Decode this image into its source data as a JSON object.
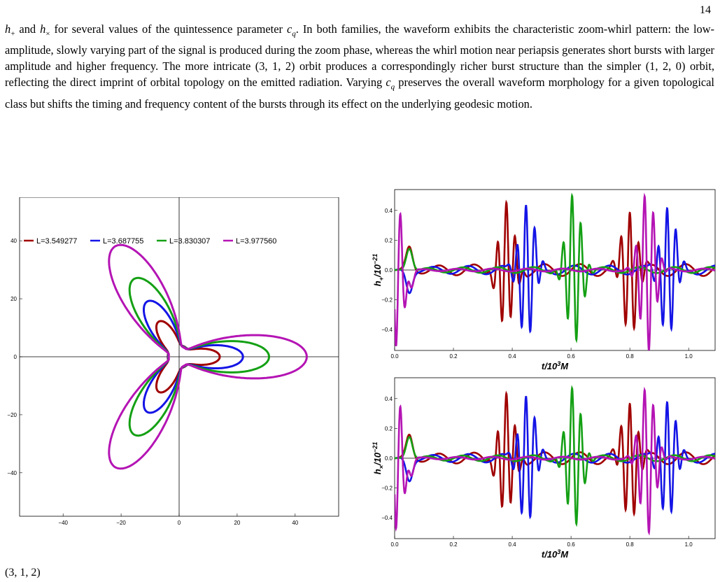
{
  "page": {
    "number": "14"
  },
  "paragraph": {
    "segments": [
      {
        "t": "h",
        "i": true
      },
      {
        "t": "+",
        "sub": true
      },
      {
        "t": " and "
      },
      {
        "t": "h",
        "i": true
      },
      {
        "t": "×",
        "sub": true
      },
      {
        "t": " for several values of the quintessence parameter "
      },
      {
        "t": "c",
        "i": true
      },
      {
        "t": "q",
        "sub": true,
        "i": true
      },
      {
        "t": ". In both families, the waveform exhibits the characteristic zoom-whirl pattern: the low-amplitude, slowly varying part of the signal is produced during the zoom phase, whereas the whirl motion near periapsis generates short bursts with larger amplitude and higher frequency. The more intricate (3, 1, 2) orbit produces a correspondingly richer burst structure than the simpler (1, 2, 0) orbit, reflecting the direct imprint of orbital topology on the emitted radiation. Varying "
      },
      {
        "t": "c",
        "i": true
      },
      {
        "t": "q",
        "sub": true,
        "i": true
      },
      {
        "t": " preserves the overall waveform morphology for a given topological class but shifts the timing and frequency content of the bursts through its effect on the underlying geodesic motion."
      }
    ]
  },
  "bottom_caption": "(3, 1, 2)",
  "colors": {
    "red": "#a00000",
    "blue": "#1414e6",
    "green": "#14a014",
    "magenta": "#b414b4"
  },
  "chart_data": [
    {
      "type": "line",
      "panel": "orbit",
      "xlim": [
        -55,
        55
      ],
      "ylim": [
        -55,
        55
      ],
      "xticks": [
        -40,
        -20,
        0,
        20,
        40
      ],
      "yticks": [
        -40,
        -20,
        0,
        20,
        40
      ],
      "series": [
        {
          "name": "L=3.549277",
          "color": "#a00000",
          "apo": 14,
          "peri": 3.9
        },
        {
          "name": "L=3.687755",
          "color": "#1414e6",
          "apo": 22,
          "peri": 3.8
        },
        {
          "name": "L=3.830307",
          "color": "#14a014",
          "apo": 31,
          "peri": 3.7
        },
        {
          "name": "L=3.977560",
          "color": "#b414b4",
          "apo": 44,
          "peri": 3.6
        }
      ],
      "legend": "top"
    },
    {
      "type": "line",
      "panel": "h-plus",
      "ylabel_main": "h",
      "ylabel_sub": "+",
      "ylabel_tail": "/10",
      "ylabel_sup": "−21",
      "xlabel_main": "t/10",
      "xlabel_sup": "3",
      "xlabel_tail": "M",
      "xlim": [
        0,
        1.09
      ],
      "ylim": [
        -0.54,
        0.54
      ],
      "xticks": [
        "0.0",
        "0.2",
        "0.4",
        "0.6",
        "0.8",
        "1.0"
      ],
      "yticks": [
        "0.4",
        "0.2",
        "0.0",
        "−0.2",
        "−0.4"
      ],
      "ytick_values": [
        0.4,
        0.2,
        0.0,
        -0.2,
        -0.4
      ],
      "series": [
        {
          "name": "L=3.549277",
          "color": "#a00000",
          "bursts": [
            [
              0.38,
              0.42,
              0.35
            ],
            [
              0.8,
              0.42,
              0.35
            ]
          ],
          "zoom": 0.04
        },
        {
          "name": "L=3.687755",
          "color": "#1414e6",
          "bursts": [
            [
              0.45,
              0.46,
              0.3
            ],
            [
              0.93,
              0.44,
              0.3
            ]
          ],
          "zoom": 0.03
        },
        {
          "name": "L=3.830307",
          "color": "#14a014",
          "bursts": [
            [
              0.61,
              0.5,
              0.25
            ]
          ],
          "zoom": 0.02
        },
        {
          "name": "L=3.977560",
          "color": "#b414b4",
          "bursts": [
            [
              0.0,
              0.52,
              0.2
            ],
            [
              0.86,
              0.54,
              0.2
            ]
          ],
          "zoom": 0.01
        }
      ]
    },
    {
      "type": "line",
      "panel": "h-cross",
      "ylabel_main": "h",
      "ylabel_sub": "×",
      "ylabel_tail": "/10",
      "ylabel_sup": "−21",
      "xlabel_main": "t/10",
      "xlabel_sup": "3",
      "xlabel_tail": "M",
      "xlim": [
        0,
        1.09
      ],
      "ylim": [
        -0.54,
        0.54
      ],
      "xticks": [
        "0.0",
        "0.2",
        "0.4",
        "0.6",
        "0.8",
        "1.0"
      ],
      "yticks": [
        "0.4",
        "0.2",
        "0.0",
        "−0.2",
        "−0.4"
      ],
      "ytick_values": [
        0.4,
        0.2,
        0.0,
        -0.2,
        -0.4
      ],
      "series": [
        {
          "name": "L=3.549277",
          "color": "#a00000",
          "bursts": [
            [
              0.38,
              0.4,
              0.35
            ],
            [
              0.8,
              0.4,
              0.35
            ]
          ],
          "zoom": 0.04
        },
        {
          "name": "L=3.687755",
          "color": "#1414e6",
          "bursts": [
            [
              0.45,
              0.44,
              0.3
            ],
            [
              0.93,
              0.4,
              0.3
            ]
          ],
          "zoom": 0.03
        },
        {
          "name": "L=3.830307",
          "color": "#14a014",
          "bursts": [
            [
              0.61,
              0.47,
              0.25
            ]
          ],
          "zoom": 0.02
        },
        {
          "name": "L=3.977560",
          "color": "#b414b4",
          "bursts": [
            [
              0.0,
              0.48,
              0.2
            ],
            [
              0.86,
              0.5,
              0.2
            ]
          ],
          "zoom": 0.01
        }
      ]
    }
  ]
}
